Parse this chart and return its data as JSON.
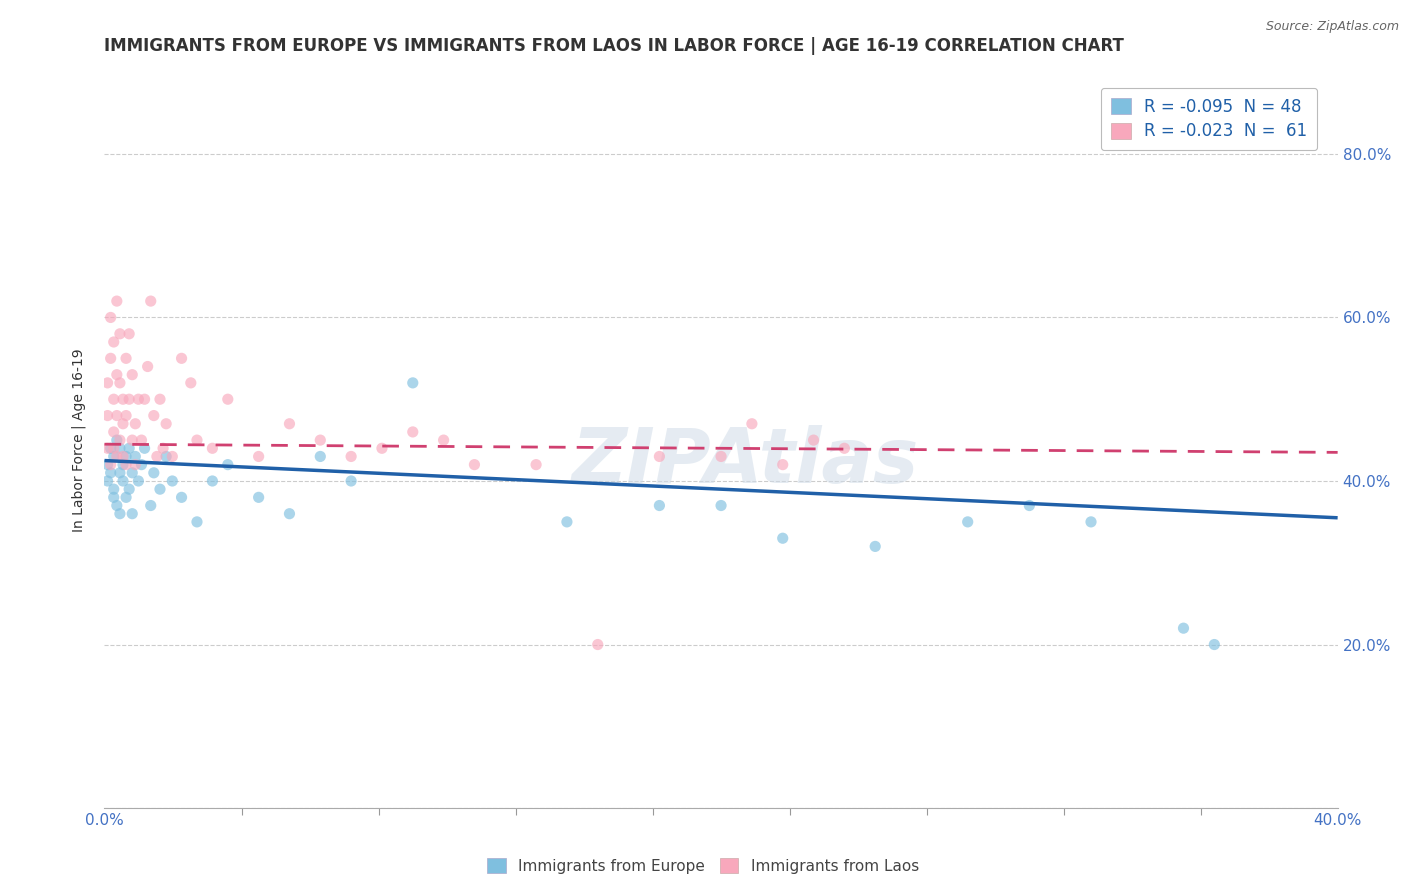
{
  "title": "IMMIGRANTS FROM EUROPE VS IMMIGRANTS FROM LAOS IN LABOR FORCE | AGE 16-19 CORRELATION CHART",
  "source": "Source: ZipAtlas.com",
  "ylabel_label": "In Labor Force | Age 16-19",
  "legend1_label": "R = -0.095  N = 48",
  "legend2_label": "R = -0.023  N =  61",
  "legend_title_europe": "Immigrants from Europe",
  "legend_title_laos": "Immigrants from Laos",
  "blue_color": "#7fbfdf",
  "pink_color": "#f8a8bc",
  "blue_line_color": "#2060a8",
  "pink_line_color": "#d04070",
  "watermark": "ZIPAtlas",
  "blue_x": [
    0.001,
    0.001,
    0.002,
    0.002,
    0.003,
    0.003,
    0.003,
    0.004,
    0.004,
    0.005,
    0.005,
    0.005,
    0.006,
    0.006,
    0.007,
    0.007,
    0.008,
    0.008,
    0.009,
    0.009,
    0.01,
    0.011,
    0.012,
    0.013,
    0.015,
    0.016,
    0.018,
    0.02,
    0.022,
    0.025,
    0.03,
    0.035,
    0.04,
    0.05,
    0.06,
    0.07,
    0.08,
    0.1,
    0.15,
    0.18,
    0.2,
    0.22,
    0.25,
    0.28,
    0.3,
    0.32,
    0.35,
    0.36
  ],
  "blue_y": [
    0.42,
    0.4,
    0.44,
    0.41,
    0.38,
    0.43,
    0.39,
    0.45,
    0.37,
    0.41,
    0.44,
    0.36,
    0.42,
    0.4,
    0.43,
    0.38,
    0.44,
    0.39,
    0.41,
    0.36,
    0.43,
    0.4,
    0.42,
    0.44,
    0.37,
    0.41,
    0.39,
    0.43,
    0.4,
    0.38,
    0.35,
    0.4,
    0.42,
    0.38,
    0.36,
    0.43,
    0.4,
    0.52,
    0.35,
    0.37,
    0.37,
    0.33,
    0.32,
    0.35,
    0.37,
    0.35,
    0.22,
    0.2
  ],
  "pink_x": [
    0.001,
    0.001,
    0.001,
    0.002,
    0.002,
    0.002,
    0.003,
    0.003,
    0.003,
    0.003,
    0.004,
    0.004,
    0.004,
    0.004,
    0.005,
    0.005,
    0.005,
    0.006,
    0.006,
    0.006,
    0.007,
    0.007,
    0.007,
    0.008,
    0.008,
    0.009,
    0.009,
    0.01,
    0.01,
    0.011,
    0.012,
    0.013,
    0.014,
    0.015,
    0.016,
    0.017,
    0.018,
    0.019,
    0.02,
    0.022,
    0.025,
    0.028,
    0.03,
    0.035,
    0.04,
    0.05,
    0.06,
    0.07,
    0.08,
    0.09,
    0.1,
    0.11,
    0.12,
    0.14,
    0.16,
    0.18,
    0.2,
    0.21,
    0.22,
    0.23,
    0.24
  ],
  "pink_y": [
    0.48,
    0.52,
    0.44,
    0.6,
    0.55,
    0.42,
    0.5,
    0.57,
    0.46,
    0.44,
    0.62,
    0.48,
    0.53,
    0.43,
    0.58,
    0.45,
    0.52,
    0.47,
    0.5,
    0.43,
    0.55,
    0.48,
    0.42,
    0.58,
    0.5,
    0.45,
    0.53,
    0.47,
    0.42,
    0.5,
    0.45,
    0.5,
    0.54,
    0.62,
    0.48,
    0.43,
    0.5,
    0.44,
    0.47,
    0.43,
    0.55,
    0.52,
    0.45,
    0.44,
    0.5,
    0.43,
    0.47,
    0.45,
    0.43,
    0.44,
    0.46,
    0.45,
    0.42,
    0.42,
    0.2,
    0.43,
    0.43,
    0.47,
    0.42,
    0.45,
    0.44
  ],
  "blue_trend_x": [
    0.0,
    0.4
  ],
  "blue_trend_y": [
    0.425,
    0.355
  ],
  "pink_trend_x": [
    0.0,
    0.4
  ],
  "pink_trend_y": [
    0.445,
    0.435
  ],
  "xmin": 0.0,
  "xmax": 0.4,
  "ymin": 0.0,
  "ymax": 0.9,
  "yticks": [
    0.0,
    0.2,
    0.4,
    0.6,
    0.8
  ],
  "ytick_labels": [
    "",
    "20.0%",
    "40.0%",
    "60.0%",
    "80.0%"
  ],
  "xtick_minor_count": 9,
  "grid_color": "#cccccc",
  "background_color": "#ffffff",
  "marker_size": 65,
  "marker_alpha": 0.65,
  "title_fontsize": 12,
  "axis_label_fontsize": 10,
  "tick_fontsize": 11,
  "legend_fontsize": 12
}
